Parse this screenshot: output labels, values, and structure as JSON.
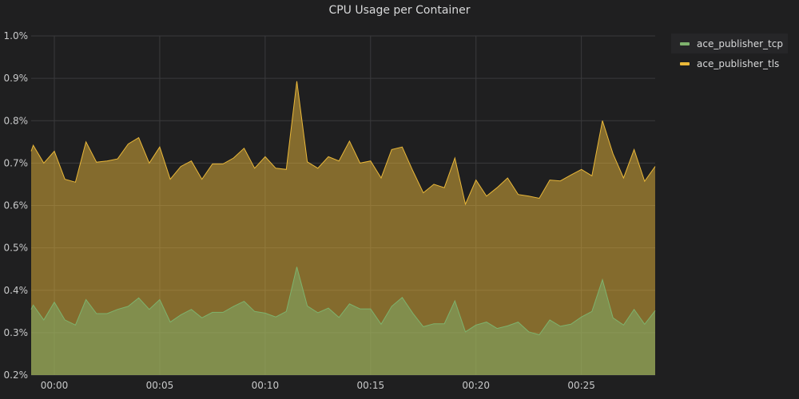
{
  "panel": {
    "title": "CPU Usage per Container"
  },
  "chart_data": {
    "type": "area",
    "title": "CPU Usage per Container",
    "stacked": false,
    "grid": true,
    "legend_position": "right",
    "ylim": [
      0.2,
      1.0
    ],
    "yticks": [
      0.2,
      0.3,
      0.4,
      0.5,
      0.6,
      0.7,
      0.8,
      0.9,
      1.0
    ],
    "ytick_labels": [
      "0.2%",
      "0.3%",
      "0.4%",
      "0.5%",
      "0.6%",
      "0.7%",
      "0.8%",
      "0.9%",
      "1.0%"
    ],
    "xlim": [
      -1.1,
      28.5
    ],
    "xticks": [
      0,
      5,
      10,
      15,
      20,
      25
    ],
    "xtick_labels": [
      "00:00",
      "00:05",
      "00:10",
      "00:15",
      "00:20",
      "00:25"
    ],
    "x": [
      -1.1,
      -1.0,
      -0.5,
      0,
      0.5,
      1.0,
      1.5,
      2.0,
      2.5,
      3.0,
      3.5,
      4.0,
      4.5,
      5.0,
      5.5,
      6.0,
      6.5,
      7.0,
      7.5,
      8.0,
      8.5,
      9.0,
      9.5,
      10.0,
      10.5,
      11.0,
      11.5,
      12.0,
      12.5,
      13.0,
      13.5,
      14.0,
      14.5,
      15.0,
      15.5,
      16.0,
      16.5,
      17.0,
      17.5,
      18.0,
      18.5,
      19.0,
      19.5,
      20.0,
      20.5,
      21.0,
      21.5,
      22.0,
      22.5,
      23.0,
      23.5,
      24.0,
      24.5,
      25.0,
      25.5,
      26.0,
      26.5,
      27.0,
      27.5,
      28.0,
      28.5
    ],
    "series": [
      {
        "name": "ace_publisher_tcp",
        "color": "#7eb26d",
        "values": [
          0.355,
          0.365,
          0.33,
          0.372,
          0.33,
          0.318,
          0.378,
          0.345,
          0.345,
          0.355,
          0.362,
          0.382,
          0.355,
          0.378,
          0.325,
          0.342,
          0.355,
          0.335,
          0.348,
          0.348,
          0.362,
          0.374,
          0.35,
          0.346,
          0.337,
          0.35,
          0.455,
          0.363,
          0.347,
          0.358,
          0.336,
          0.368,
          0.356,
          0.356,
          0.32,
          0.362,
          0.383,
          0.346,
          0.314,
          0.321,
          0.321,
          0.375,
          0.302,
          0.318,
          0.325,
          0.31,
          0.316,
          0.325,
          0.302,
          0.295,
          0.33,
          0.315,
          0.32,
          0.337,
          0.35,
          0.425,
          0.335,
          0.318,
          0.355,
          0.32,
          0.352
        ]
      },
      {
        "name": "ace_publisher_tls",
        "color": "#eab839",
        "values": [
          0.728,
          0.742,
          0.7,
          0.728,
          0.662,
          0.655,
          0.75,
          0.702,
          0.705,
          0.71,
          0.745,
          0.76,
          0.7,
          0.738,
          0.662,
          0.692,
          0.705,
          0.662,
          0.698,
          0.698,
          0.712,
          0.735,
          0.688,
          0.715,
          0.688,
          0.685,
          0.893,
          0.703,
          0.688,
          0.715,
          0.705,
          0.752,
          0.7,
          0.705,
          0.665,
          0.732,
          0.738,
          0.682,
          0.63,
          0.65,
          0.642,
          0.712,
          0.603,
          0.66,
          0.622,
          0.642,
          0.665,
          0.626,
          0.622,
          0.617,
          0.66,
          0.658,
          0.672,
          0.685,
          0.67,
          0.8,
          0.722,
          0.665,
          0.732,
          0.657,
          0.692
        ]
      }
    ]
  }
}
